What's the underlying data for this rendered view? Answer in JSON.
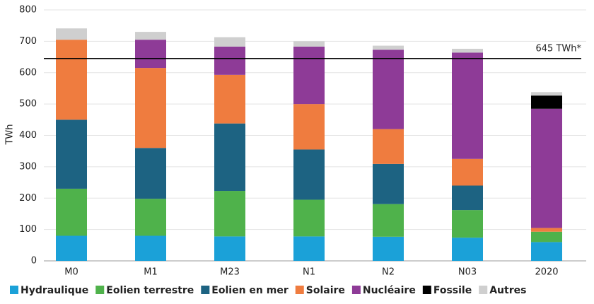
{
  "chart_data": {
    "type": "stacked_bar",
    "y_label": "TWh",
    "categories": [
      "M0",
      "M1",
      "M23",
      "N1",
      "N2",
      "N03",
      "2020"
    ],
    "series": [
      {
        "name": "Hydraulique",
        "color": "#1ba1d8",
        "values": [
          80,
          80,
          78,
          78,
          77,
          74,
          60
        ]
      },
      {
        "name": "Eolien terrestre",
        "color": "#4fb24b",
        "values": [
          150,
          118,
          145,
          117,
          104,
          88,
          33
        ]
      },
      {
        "name": "Eolien en mer",
        "color": "#1d6382",
        "values": [
          220,
          162,
          215,
          160,
          128,
          78,
          0
        ]
      },
      {
        "name": "Solaire",
        "color": "#ef7c3f",
        "values": [
          255,
          255,
          155,
          145,
          111,
          85,
          12
        ]
      },
      {
        "name": "Nucléaire",
        "color": "#8e3b97",
        "values": [
          0,
          90,
          90,
          183,
          253,
          339,
          380
        ]
      },
      {
        "name": "Fossile",
        "color": "#000000",
        "values": [
          0,
          0,
          0,
          0,
          0,
          0,
          42
        ]
      },
      {
        "name": "Autres",
        "color": "#cfcfcf",
        "values": [
          36,
          25,
          30,
          17,
          13,
          12,
          11
        ]
      }
    ],
    "ylim": [
      0,
      800
    ],
    "yticks": [
      0,
      100,
      200,
      300,
      400,
      500,
      600,
      700,
      800
    ],
    "grid": true,
    "reference_line": {
      "value": 645,
      "label": "645 TWh*"
    }
  }
}
